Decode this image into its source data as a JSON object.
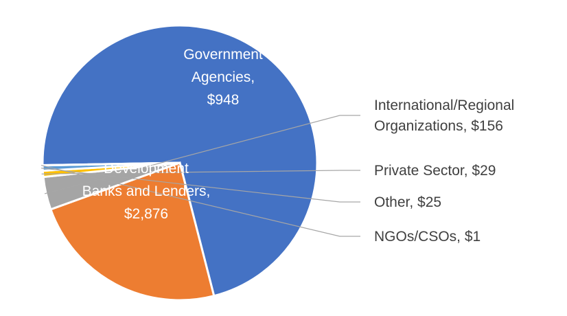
{
  "chart_data": {
    "type": "pie",
    "title": "",
    "slices": [
      {
        "label": "Development Banks and Lenders",
        "value": 2876,
        "display_value": "$2,876",
        "color": "#4472c4",
        "label_lines": [
          "Development",
          "Banks and Lenders,",
          "$2,876"
        ]
      },
      {
        "label": "Government Agencies",
        "value": 948,
        "display_value": "$948",
        "color": "#ed7d31",
        "label_lines": [
          "Government",
          "Agencies,",
          "$948"
        ]
      },
      {
        "label": "International/Regional Organizations",
        "value": 156,
        "display_value": "$156",
        "color": "#a5a5a5",
        "label_lines": [
          "International/Regional",
          "Organizations, $156"
        ]
      },
      {
        "label": "Private Sector",
        "value": 29,
        "display_value": "$29",
        "color": "#ffc000",
        "label_lines": [
          "Private Sector, $29"
        ]
      },
      {
        "label": "Other",
        "value": 25,
        "display_value": "$25",
        "color": "#5b9bd5",
        "label_lines": [
          "Other, $25"
        ]
      },
      {
        "label": "NGOs/CSOs",
        "value": 1,
        "display_value": "$1",
        "color": "#70ad47",
        "label_lines": [
          "NGOs/CSOs, $1"
        ]
      }
    ],
    "legend": "none"
  }
}
